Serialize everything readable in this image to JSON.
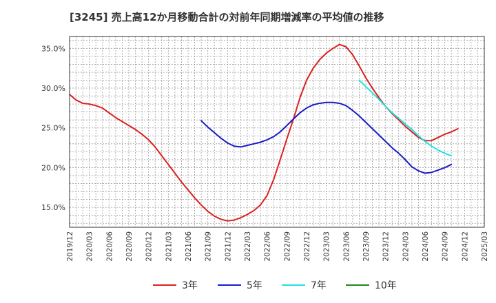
{
  "chart_data": {
    "type": "line",
    "title": "[3245]  売上高12か月移動合計の対前年同期増減率の平均値の推移",
    "xlabel": "",
    "ylabel": "",
    "x_range": [
      "2019/12",
      "2025/03"
    ],
    "ylim": [
      12.5,
      36.5
    ],
    "y_ticks": [
      "15.0%",
      "20.0%",
      "25.0%",
      "30.0%",
      "35.0%"
    ],
    "x_ticks": [
      "2019/12",
      "2020/03",
      "2020/06",
      "2020/09",
      "2020/12",
      "2021/03",
      "2021/06",
      "2021/09",
      "2021/12",
      "2022/03",
      "2022/06",
      "2022/09",
      "2022/12",
      "2023/03",
      "2023/06",
      "2023/09",
      "2023/12",
      "2024/03",
      "2024/06",
      "2024/09",
      "2024/12",
      "2025/03"
    ],
    "grid": true,
    "legend_position": "bottom",
    "series": [
      {
        "name": "3年",
        "color": "#dd1f1f",
        "points": [
          [
            "2019/12",
            29.2
          ],
          [
            "2020/01",
            28.5
          ],
          [
            "2020/02",
            28.1
          ],
          [
            "2020/03",
            28.0
          ],
          [
            "2020/04",
            27.8
          ],
          [
            "2020/05",
            27.5
          ],
          [
            "2020/06",
            26.9
          ],
          [
            "2020/07",
            26.3
          ],
          [
            "2020/08",
            25.8
          ],
          [
            "2020/09",
            25.3
          ],
          [
            "2020/10",
            24.8
          ],
          [
            "2020/11",
            24.2
          ],
          [
            "2020/12",
            23.5
          ],
          [
            "2021/01",
            22.6
          ],
          [
            "2021/02",
            21.5
          ],
          [
            "2021/03",
            20.4
          ],
          [
            "2021/04",
            19.3
          ],
          [
            "2021/05",
            18.2
          ],
          [
            "2021/06",
            17.2
          ],
          [
            "2021/07",
            16.2
          ],
          [
            "2021/08",
            15.3
          ],
          [
            "2021/09",
            14.5
          ],
          [
            "2021/10",
            13.9
          ],
          [
            "2021/11",
            13.5
          ],
          [
            "2021/12",
            13.3
          ],
          [
            "2022/01",
            13.4
          ],
          [
            "2022/02",
            13.7
          ],
          [
            "2022/03",
            14.1
          ],
          [
            "2022/04",
            14.6
          ],
          [
            "2022/05",
            15.3
          ],
          [
            "2022/06",
            16.5
          ],
          [
            "2022/07",
            18.5
          ],
          [
            "2022/08",
            21.0
          ],
          [
            "2022/09",
            23.6
          ],
          [
            "2022/10",
            26.1
          ],
          [
            "2022/11",
            28.8
          ],
          [
            "2022/12",
            31.0
          ],
          [
            "2023/01",
            32.5
          ],
          [
            "2023/02",
            33.6
          ],
          [
            "2023/03",
            34.4
          ],
          [
            "2023/04",
            35.0
          ],
          [
            "2023/05",
            35.5
          ],
          [
            "2023/06",
            35.2
          ],
          [
            "2023/07",
            34.2
          ],
          [
            "2023/08",
            32.8
          ],
          [
            "2023/09",
            31.3
          ],
          [
            "2023/10",
            30.0
          ],
          [
            "2023/11",
            28.8
          ],
          [
            "2023/12",
            27.7
          ],
          [
            "2024/01",
            26.8
          ],
          [
            "2024/02",
            26.0
          ],
          [
            "2024/03",
            25.2
          ],
          [
            "2024/04",
            24.5
          ],
          [
            "2024/05",
            23.8
          ],
          [
            "2024/06",
            23.4
          ],
          [
            "2024/07",
            23.4
          ],
          [
            "2024/08",
            23.8
          ],
          [
            "2024/09",
            24.2
          ],
          [
            "2024/10",
            24.5
          ],
          [
            "2024/11",
            24.9
          ]
        ]
      },
      {
        "name": "5年",
        "color": "#1a1ac8",
        "points": [
          [
            "2021/08",
            25.9
          ],
          [
            "2021/09",
            25.1
          ],
          [
            "2021/10",
            24.4
          ],
          [
            "2021/11",
            23.7
          ],
          [
            "2021/12",
            23.1
          ],
          [
            "2022/01",
            22.7
          ],
          [
            "2022/02",
            22.6
          ],
          [
            "2022/03",
            22.8
          ],
          [
            "2022/04",
            23.0
          ],
          [
            "2022/05",
            23.2
          ],
          [
            "2022/06",
            23.5
          ],
          [
            "2022/07",
            23.9
          ],
          [
            "2022/08",
            24.5
          ],
          [
            "2022/09",
            25.3
          ],
          [
            "2022/10",
            26.1
          ],
          [
            "2022/11",
            26.9
          ],
          [
            "2022/12",
            27.5
          ],
          [
            "2023/01",
            27.9
          ],
          [
            "2023/02",
            28.1
          ],
          [
            "2023/03",
            28.2
          ],
          [
            "2023/04",
            28.2
          ],
          [
            "2023/05",
            28.1
          ],
          [
            "2023/06",
            27.8
          ],
          [
            "2023/07",
            27.2
          ],
          [
            "2023/08",
            26.5
          ],
          [
            "2023/09",
            25.7
          ],
          [
            "2023/10",
            24.9
          ],
          [
            "2023/11",
            24.1
          ],
          [
            "2023/12",
            23.3
          ],
          [
            "2024/01",
            22.5
          ],
          [
            "2024/02",
            21.8
          ],
          [
            "2024/03",
            21.0
          ],
          [
            "2024/04",
            20.1
          ],
          [
            "2024/05",
            19.6
          ],
          [
            "2024/06",
            19.3
          ],
          [
            "2024/07",
            19.4
          ],
          [
            "2024/08",
            19.7
          ],
          [
            "2024/09",
            20.0
          ],
          [
            "2024/10",
            20.4
          ]
        ]
      },
      {
        "name": "7年",
        "color": "#1fe1e1",
        "points": [
          [
            "2023/08",
            31.0
          ],
          [
            "2023/09",
            30.2
          ],
          [
            "2023/10",
            29.4
          ],
          [
            "2023/11",
            28.6
          ],
          [
            "2023/12",
            27.7
          ],
          [
            "2024/01",
            26.9
          ],
          [
            "2024/02",
            26.2
          ],
          [
            "2024/03",
            25.5
          ],
          [
            "2024/04",
            24.8
          ],
          [
            "2024/05",
            24.0
          ],
          [
            "2024/06",
            23.3
          ],
          [
            "2024/07",
            22.7
          ],
          [
            "2024/08",
            22.2
          ],
          [
            "2024/09",
            21.8
          ],
          [
            "2024/10",
            21.5
          ]
        ]
      },
      {
        "name": "10年",
        "color": "#1a8a1a",
        "points": []
      }
    ]
  }
}
